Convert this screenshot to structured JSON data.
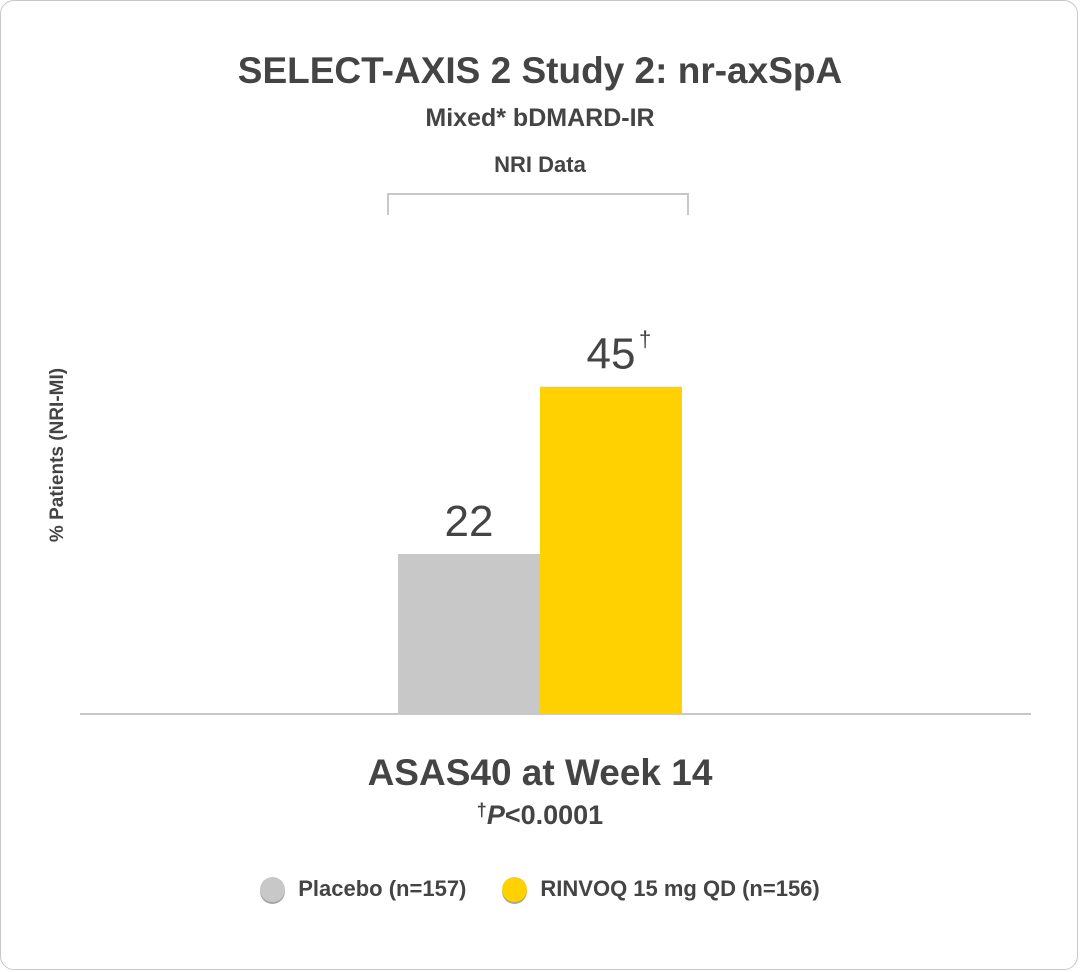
{
  "chart_data": {
    "type": "bar",
    "title": "SELECT-AXIS 2 Study 2: nr-axSpA",
    "subtitle": "Mixed* bDMARD-IR",
    "group_label": "NRI Data",
    "ylabel": "% Patients (NRI-MI)",
    "categories": [
      "ASAS40 at Week 14"
    ],
    "series": [
      {
        "name": "Placebo (n=157)",
        "values": [
          22
        ],
        "label": "22",
        "mark": "",
        "color": "#c8c8c8"
      },
      {
        "name": "RINVOQ 15 mg QD (n=156)",
        "values": [
          45
        ],
        "label": "45",
        "mark": "†",
        "color": "#ffd100"
      }
    ],
    "ylim": [
      0,
      66
    ],
    "grid": false,
    "legend_position": "bottom-center",
    "footnote": {
      "symbol": "†",
      "p": "P",
      "rest": "<0.0001"
    },
    "axis_color": "#c8c8c8",
    "text_color": "#444444"
  }
}
